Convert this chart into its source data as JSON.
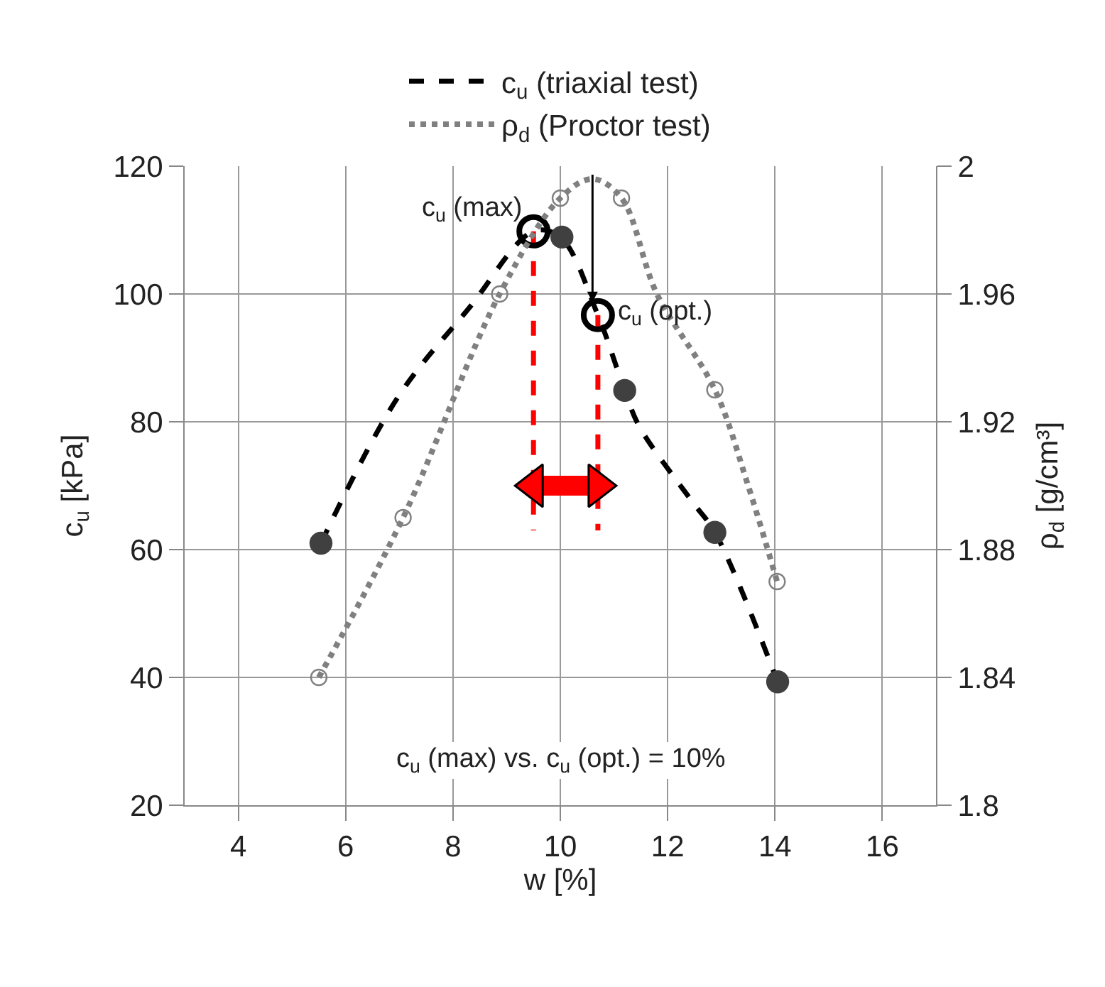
{
  "chart_data": {
    "type": "line",
    "xlabel": "w [%]",
    "ylabel": "c$_{u}$ [kPa]",
    "y2label": "ρ$_{d}$ [g/cm³]",
    "xlim": [
      3,
      17
    ],
    "xticks": [
      4,
      6,
      8,
      10,
      12,
      14,
      16
    ],
    "ylim": [
      20,
      120
    ],
    "yticks": [
      20,
      40,
      60,
      80,
      100,
      120
    ],
    "y2lim": [
      1.8,
      2
    ],
    "y2ticks": [
      1.8,
      1.84,
      1.88,
      1.92,
      1.96,
      2
    ],
    "grid": true,
    "legend": "top",
    "series": [
      {
        "name": "c$_{u}$ (triaxial test)",
        "color": "#000000",
        "line_style": "dashed",
        "marker": "none",
        "x": [
          5.54,
          6.97,
          8.3,
          9.5,
          10.0,
          10.7,
          11.2,
          11.47,
          12.45,
          12.88,
          14.05
        ],
        "values": [
          61,
          83.8,
          97.8,
          109.8,
          108.9,
          96.7,
          84.9,
          79.3,
          67.6,
          62.7,
          39.3
        ]
      },
      {
        "name": "ρ$_{d}$ (Proctor test)",
        "axis": "y2",
        "color": "#808080",
        "line_style": "dotted",
        "marker": "none",
        "x": [
          5.5,
          7.07,
          8.87,
          10.0,
          10.6,
          11.14,
          11.8,
          12.88,
          13.5,
          14.04
        ],
        "values": [
          1.84,
          1.89,
          1.96,
          1.99,
          1.996,
          1.99,
          1.96,
          1.93,
          1.9,
          1.87
        ]
      },
      {
        "type": "scatter",
        "color": "#404040",
        "marker": "circle",
        "x": [
          5.54,
          10.03,
          11.2,
          12.88,
          14.05
        ],
        "values": [
          61,
          108.9,
          84.9,
          62.7,
          39.3
        ]
      },
      {
        "type": "scatter",
        "axis": "y2",
        "color": "#808080",
        "marker": "circle",
        "x": [
          5.5,
          7.07,
          8.87,
          10.0,
          11.14,
          12.88,
          14.04
        ],
        "values": [
          1.84,
          1.89,
          1.96,
          1.99,
          1.99,
          1.93,
          1.87
        ]
      },
      {
        "type": "line",
        "color": "#ff0000",
        "line_style": "dashed",
        "marker": "none",
        "x": [
          9.5,
          9.5
        ],
        "values": [
          109.8,
          63
        ]
      },
      {
        "type": "line",
        "color": "#ff0000",
        "line_style": "dashed",
        "marker": "none",
        "x": [
          10.7,
          10.7
        ],
        "values": [
          96.7,
          63
        ]
      },
      {
        "type": "line",
        "color": "#ff0000",
        "line_style": "solid",
        "marker": "triangle",
        "x": [
          9.5,
          10.7
        ],
        "values": [
          70,
          70
        ]
      }
    ],
    "annotations": [
      {
        "text": "c$_{u}$ (max)",
        "x": 9.5,
        "y": 109.8
      },
      {
        "text": "c$_{u}$ (opt.)",
        "x": 10.7,
        "y": 96.7
      },
      "c$_{u}$ (max) vs. c$_{u}$ (opt.) = 10%"
    ]
  }
}
